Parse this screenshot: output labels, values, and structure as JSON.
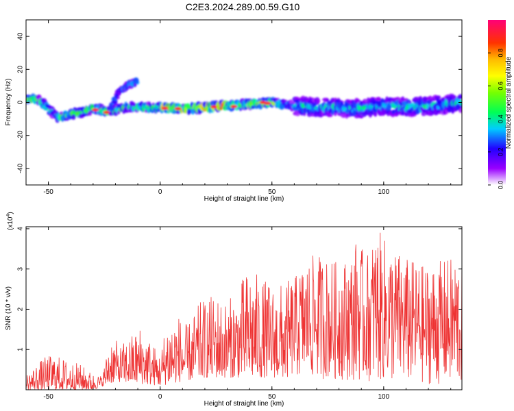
{
  "title": "C2E3.2024.289.00.59.G10",
  "chart_data": [
    {
      "type": "heatmap",
      "xlabel": "Height of straight line (km)",
      "ylabel": "Frequency (Hz)",
      "xlim": [
        -60,
        135
      ],
      "ylim": [
        -50,
        50
      ],
      "xticks": [
        -50,
        0,
        50,
        100
      ],
      "yticks": [
        -40,
        -20,
        0,
        20,
        40
      ],
      "colorbar": {
        "label": "Normalized spectral amplitude",
        "range": [
          0,
          1
        ],
        "ticks": [
          "0.0",
          "0.2",
          "0.4",
          "0.6",
          "0.8"
        ]
      },
      "ridge": [
        {
          "x": -60,
          "y": 2
        },
        {
          "x": -55,
          "y": 2
        },
        {
          "x": -52,
          "y": -1
        },
        {
          "x": -48,
          "y": -7
        },
        {
          "x": -45,
          "y": -9
        },
        {
          "x": -40,
          "y": -7
        },
        {
          "x": -35,
          "y": -6
        },
        {
          "x": -30,
          "y": -4
        },
        {
          "x": -28,
          "y": -4
        },
        {
          "x": -23,
          "y": -6
        },
        {
          "x": -22,
          "y": -5
        },
        {
          "x": -20,
          "y": 3
        },
        {
          "x": -18,
          "y": 7
        },
        {
          "x": -15,
          "y": 10
        },
        {
          "x": -10,
          "y": 13
        },
        {
          "x": -15,
          "y": -3
        },
        {
          "x": -5,
          "y": -3
        },
        {
          "x": 0,
          "y": -3
        },
        {
          "x": 10,
          "y": -4
        },
        {
          "x": 20,
          "y": -3
        },
        {
          "x": 30,
          "y": -2
        },
        {
          "x": 40,
          "y": -1
        },
        {
          "x": 50,
          "y": 0
        },
        {
          "x": 60,
          "y": -2
        },
        {
          "x": 70,
          "y": -3
        },
        {
          "x": 80,
          "y": -3
        },
        {
          "x": 90,
          "y": -4
        },
        {
          "x": 100,
          "y": -2
        },
        {
          "x": 110,
          "y": -3
        },
        {
          "x": 120,
          "y": -2
        },
        {
          "x": 130,
          "y": -1
        },
        {
          "x": 135,
          "y": 0
        }
      ]
    },
    {
      "type": "line",
      "xlabel": "Height of straight line (km)",
      "ylabel": "SNR (10 * v/v)",
      "yscale_label": "(x10",
      "yscale_exp": "4",
      "yscale_close": ")",
      "xlim": [
        -60,
        135
      ],
      "ylim": [
        0,
        4.05
      ],
      "xticks": [
        -50,
        0,
        50,
        100
      ],
      "yticks": [
        1,
        2,
        3,
        4
      ],
      "color": "#ee3333",
      "envelope": [
        {
          "x": -60,
          "y": 0.4
        },
        {
          "x": -52,
          "y": 0.8
        },
        {
          "x": -48,
          "y": 0.9
        },
        {
          "x": -42,
          "y": 0.75
        },
        {
          "x": -36,
          "y": 0.65
        },
        {
          "x": -30,
          "y": 0.4
        },
        {
          "x": -26,
          "y": 0.35
        },
        {
          "x": -22,
          "y": 1.4
        },
        {
          "x": -18,
          "y": 1.1
        },
        {
          "x": -14,
          "y": 1.3
        },
        {
          "x": -9,
          "y": 1.6
        },
        {
          "x": -5,
          "y": 1.3
        },
        {
          "x": 0,
          "y": 0.9
        },
        {
          "x": 3,
          "y": 1.8
        },
        {
          "x": 8,
          "y": 1.9
        },
        {
          "x": 12,
          "y": 1.6
        },
        {
          "x": 18,
          "y": 2.2
        },
        {
          "x": 25,
          "y": 2.4
        },
        {
          "x": 30,
          "y": 2.2
        },
        {
          "x": 35,
          "y": 2.6
        },
        {
          "x": 40,
          "y": 3.1
        },
        {
          "x": 45,
          "y": 2.8
        },
        {
          "x": 52,
          "y": 2.6
        },
        {
          "x": 60,
          "y": 2.8
        },
        {
          "x": 65,
          "y": 3.2
        },
        {
          "x": 70,
          "y": 3.4
        },
        {
          "x": 78,
          "y": 3.2
        },
        {
          "x": 85,
          "y": 3.3
        },
        {
          "x": 88,
          "y": 3.8
        },
        {
          "x": 92,
          "y": 3.3
        },
        {
          "x": 97,
          "y": 4.0
        },
        {
          "x": 103,
          "y": 3.6
        },
        {
          "x": 110,
          "y": 3.3
        },
        {
          "x": 118,
          "y": 3.1
        },
        {
          "x": 125,
          "y": 3.2
        },
        {
          "x": 135,
          "y": 3.4
        }
      ],
      "floor": [
        {
          "x": -60,
          "y": 0.0
        },
        {
          "x": -30,
          "y": 0.0
        },
        {
          "x": -20,
          "y": 0.2
        },
        {
          "x": 0,
          "y": 0.1
        },
        {
          "x": 20,
          "y": 0.3
        },
        {
          "x": 60,
          "y": 0.3
        },
        {
          "x": 135,
          "y": 0.1
        }
      ]
    }
  ]
}
